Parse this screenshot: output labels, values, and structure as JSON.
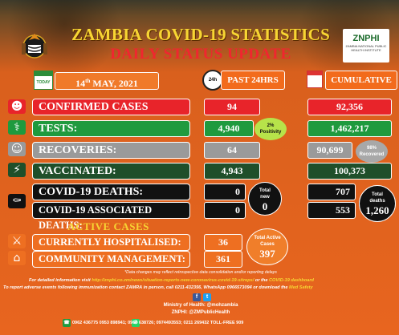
{
  "header": {
    "title": "ZAMBIA COVID-19 STATISTICS",
    "subtitle": "DAILY STATUS UPDATE",
    "logo_name": "ZNPHI",
    "logo_sub": "ZAMBIA NATIONAL PUBLIC HEALTH INSTITUTE"
  },
  "date": {
    "calendar_label": "TODAY",
    "day": "14",
    "suffix": "th",
    "month_year": " MAY, 2021"
  },
  "columns": {
    "clock_label": "24h",
    "past24": "PAST 24HRS",
    "cumulative": "CUMULATIVE"
  },
  "rows": [
    {
      "label": "CONFIRMED CASES",
      "past": "94",
      "cumulative": "92,356"
    },
    {
      "label": "TESTS:",
      "past": "4,940",
      "cumulative": "1,462,217"
    },
    {
      "label": "RECOVERIES:",
      "past": "64",
      "cumulative": "90,699"
    },
    {
      "label": "VACCINATED:",
      "past": "4,943",
      "cumulative": "100,373"
    },
    {
      "label": "COVID-19 DEATHS:",
      "past": "0",
      "cumulative": "707"
    },
    {
      "label": "COVID-19 ASSOCIATED DEATHS:",
      "past": "0",
      "cumulative": "553"
    }
  ],
  "bubbles": {
    "positivity_value": "2%",
    "positivity_label": "Positivity",
    "recovered_value": "98%",
    "recovered_label": "Recovered",
    "total_new_label_1": "Total",
    "total_new_label_2": "new",
    "total_new_value": "0",
    "total_deaths_label_1": "Total",
    "total_deaths_label_2": "deaths",
    "total_deaths_value": "1,260",
    "total_active_label_1": "Total Active",
    "total_active_label_2": "Cases",
    "total_active_value": "397"
  },
  "active": {
    "title": "ACTIVE CASES",
    "rows": [
      {
        "label": "CURRENTLY HOSPITALISED:",
        "value": "36"
      },
      {
        "label": "COMMUNITY MANAGEMENT:",
        "value": "361"
      }
    ]
  },
  "footer": {
    "note": "*Data changes may reflect retrospective data consolidation and/or reporting delays",
    "line1_a": "For detailed information visit ",
    "line1_link": "http://znphi.co.zm/news/situation-reports-new-coronavirus-covid-19-sitreps/",
    "line1_b": " or the ",
    "line1_c": "COVID-19 dashboard",
    "line2_a": "To report adverse events following immunization contact ZAMRA in person, call 0211-432356, WhatsApp 0966573094 or download the ",
    "line2_b": "Med Safety",
    "ministry": "Ministry of Health: @mohzambia",
    "znphi": "ZNPHI: @ZMPublicHealth",
    "phones": "0962 436775   0953 898941; 0964 638726; 0974493553; 0211 269432 TOLL-FREE 909"
  },
  "colors": {
    "background": "#e8621f",
    "title": "#f7d533",
    "subtitle": "#f0262f",
    "confirmed": "#e8242a",
    "tests": "#1f9a3e",
    "recoveries": "#9a9a9a",
    "vaccinated": "#1f4f2a",
    "deaths": "#111111",
    "active": "#ee6f21"
  },
  "icons": {
    "row_icons": [
      "group-icon",
      "test-kit-icon",
      "recovered-person-icon",
      "syringe-icon",
      "coffin-icon"
    ],
    "active_icons": [
      "hospital-bed-icon",
      "home-icon"
    ],
    "social": [
      "facebook-icon",
      "twitter-icon",
      "phone-icon",
      "whatsapp-icon"
    ]
  }
}
